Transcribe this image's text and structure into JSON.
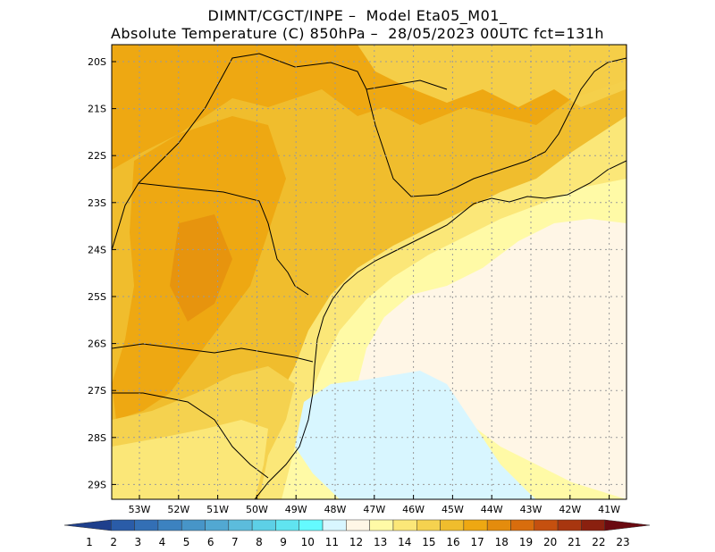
{
  "title_line1": "DIMNT/CGCT/INPE –  Model Eta05_M01_",
  "title_line2": "Absolute Temperature (C) 850hPa –  28/05/2023 00UTC fct=131h",
  "lat_labels": [
    "20S",
    "21S",
    "22S",
    "23S",
    "24S",
    "25S",
    "26S",
    "27S",
    "28S",
    "29S"
  ],
  "lon_labels": [
    "53W",
    "52W",
    "51W",
    "50W",
    "49W",
    "48W",
    "47W",
    "46W",
    "45W",
    "44W",
    "43W",
    "42W",
    "41W"
  ],
  "colorbar": {
    "labels": [
      "1",
      "2",
      "3",
      "4",
      "5",
      "6",
      "7",
      "8",
      "9",
      "10",
      "11",
      "12",
      "13",
      "14",
      "15",
      "16",
      "17",
      "18",
      "19",
      "20",
      "21",
      "22",
      "23"
    ],
    "colors": [
      "#1e3f8c",
      "#2a5ca8",
      "#336fb5",
      "#3c82c0",
      "#4795c8",
      "#52a8d2",
      "#5cbcdc",
      "#5dd0e6",
      "#60e4f0",
      "#64faff",
      "#d8f6ff",
      "#fff6e6",
      "#fffaa6",
      "#fbe778",
      "#f5d24f",
      "#f0bd2d",
      "#eea812",
      "#e48c0d",
      "#d86d0d",
      "#c5500f",
      "#a8360f",
      "#8a200f",
      "#6a0a10"
    ]
  }
}
